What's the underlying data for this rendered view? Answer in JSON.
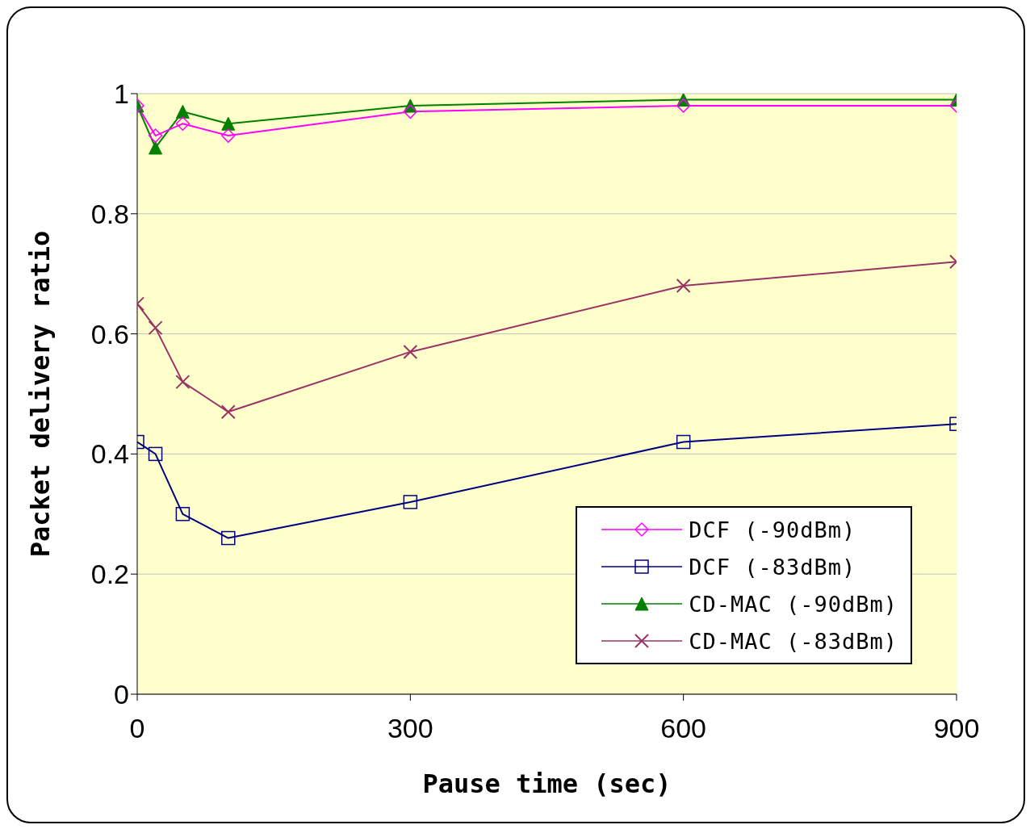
{
  "chart_data": {
    "type": "line",
    "xlabel": "Pause time (sec)",
    "ylabel": "Packet delivery ratio",
    "x": [
      0,
      20,
      50,
      100,
      300,
      600,
      900
    ],
    "xlim": [
      0,
      900
    ],
    "xticks": [
      0,
      300,
      600,
      900
    ],
    "ylim": [
      0,
      1
    ],
    "yticks": [
      0,
      0.2,
      0.4,
      0.6,
      0.8,
      1
    ],
    "grid": "y",
    "legend": "bottom right",
    "line_style": "solid",
    "series": [
      {
        "name": "DCF (-90dBm)",
        "color": "#ff00ff",
        "marker": "diamond",
        "values": [
          0.98,
          0.93,
          0.95,
          0.93,
          0.97,
          0.98,
          0.98
        ]
      },
      {
        "name": "DCF (-83dBm)",
        "color": "#000080",
        "marker": "square",
        "values": [
          0.42,
          0.4,
          0.3,
          0.26,
          0.32,
          0.42,
          0.45
        ]
      },
      {
        "name": "CD-MAC (-90dBm)",
        "color": "#008000",
        "marker": "triangle",
        "values": [
          0.98,
          0.91,
          0.97,
          0.95,
          0.98,
          0.99,
          0.99
        ]
      },
      {
        "name": "CD-MAC (-83dBm)",
        "color": "#993366",
        "marker": "cross",
        "values": [
          0.65,
          0.61,
          0.52,
          0.47,
          0.57,
          0.68,
          0.72
        ]
      }
    ]
  }
}
